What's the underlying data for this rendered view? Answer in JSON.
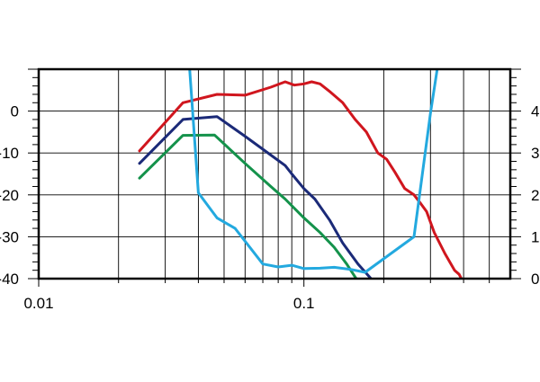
{
  "chart_data": {
    "type": "line",
    "x_scale": "log",
    "xlim": [
      0.01,
      0.6
    ],
    "ylim": [
      -40,
      10
    ],
    "y2lim": [
      0,
      5
    ],
    "grid": true,
    "legend": "none",
    "x_tick_labels": [
      {
        "value": 0.01,
        "label": "0.01"
      },
      {
        "value": 0.1,
        "label": "0.1"
      }
    ],
    "y_tick_labels": [
      {
        "value": 0,
        "label": "0"
      },
      {
        "value": -10,
        "label": "-10"
      },
      {
        "value": -20,
        "label": "-20"
      },
      {
        "value": -30,
        "label": "-30"
      },
      {
        "value": -40,
        "label": "-40"
      }
    ],
    "y2_tick_labels": [
      {
        "value": 4,
        "label": "4"
      },
      {
        "value": 3,
        "label": "3"
      },
      {
        "value": 2,
        "label": "2"
      },
      {
        "value": 1,
        "label": "1"
      },
      {
        "value": 0,
        "label": "0"
      }
    ],
    "series": [
      {
        "axis": "left",
        "color": "#d0161e",
        "x": [
          0.024,
          0.035,
          0.047,
          0.06,
          0.075,
          0.085,
          0.092,
          0.1,
          0.107,
          0.115,
          0.126,
          0.14,
          0.156,
          0.172,
          0.19,
          0.205,
          0.22,
          0.24,
          0.26,
          0.275,
          0.29,
          0.31,
          0.34,
          0.37,
          0.385,
          0.4
        ],
        "y": [
          -9.5,
          2,
          4,
          3.8,
          5.7,
          7,
          6.2,
          6.5,
          7,
          6.5,
          4.5,
          2,
          -2,
          -5,
          -10,
          -11.5,
          -14.5,
          -18.5,
          -20,
          -22,
          -24,
          -29,
          -34,
          -38,
          -39,
          -41
        ]
      },
      {
        "axis": "left",
        "color": "#1b2a78",
        "x": [
          0.024,
          0.035,
          0.047,
          0.06,
          0.075,
          0.085,
          0.09,
          0.1,
          0.11,
          0.125,
          0.14,
          0.16,
          0.185
        ],
        "y": [
          -12.5,
          -2,
          -1.3,
          -6,
          -10.5,
          -13,
          -15,
          -18.5,
          -21,
          -26,
          -31.5,
          -36.5,
          -41
        ]
      },
      {
        "axis": "left",
        "color": "#14924b",
        "x": [
          0.024,
          0.035,
          0.046,
          0.06,
          0.075,
          0.085,
          0.1,
          0.115,
          0.13,
          0.145,
          0.165
        ],
        "y": [
          -16,
          -5.8,
          -5.7,
          -12.5,
          -18,
          -21,
          -25.5,
          -29,
          -32.5,
          -36.5,
          -42
        ]
      },
      {
        "axis": "right",
        "color": "#23a9df",
        "x": [
          0.037,
          0.04,
          0.047,
          0.055,
          0.07,
          0.08,
          0.09,
          0.1,
          0.115,
          0.13,
          0.15,
          0.17,
          0.26,
          0.3,
          0.32
        ],
        "y2": [
          5.1,
          2.05,
          1.45,
          1.2,
          0.35,
          0.28,
          0.32,
          0.24,
          0.25,
          0.27,
          0.22,
          0.15,
          1.0,
          3.95,
          5.1
        ]
      }
    ]
  }
}
